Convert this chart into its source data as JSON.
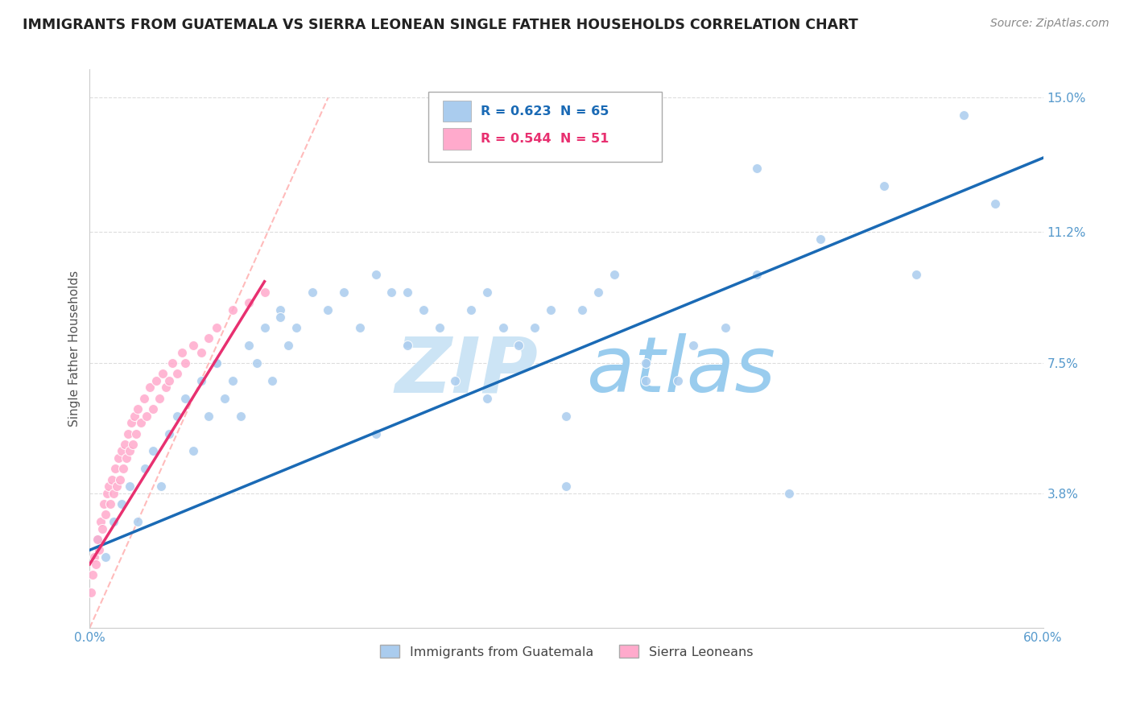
{
  "title": "IMMIGRANTS FROM GUATEMALA VS SIERRA LEONEAN SINGLE FATHER HOUSEHOLDS CORRELATION CHART",
  "source": "Source: ZipAtlas.com",
  "ylabel": "Single Father Households",
  "legend_labels": [
    "Immigrants from Guatemala",
    "Sierra Leoneans"
  ],
  "r_blue": 0.623,
  "n_blue": 65,
  "r_pink": 0.544,
  "n_pink": 51,
  "xlim": [
    0.0,
    0.6
  ],
  "ylim": [
    0.0,
    0.158
  ],
  "yticks": [
    0.038,
    0.075,
    0.112,
    0.15
  ],
  "ytick_labels": [
    "3.8%",
    "7.5%",
    "11.2%",
    "15.0%"
  ],
  "xticks": [
    0.0,
    0.1,
    0.2,
    0.3,
    0.4,
    0.5,
    0.6
  ],
  "xtick_labels": [
    "0.0%",
    "",
    "",
    "",
    "",
    "",
    "60.0%"
  ],
  "blue_color": "#aaccee",
  "pink_color": "#ffaacc",
  "blue_line_color": "#1a6ab5",
  "pink_line_color": "#e83070",
  "diag_color": "#ffbbbb",
  "grid_color": "#dddddd",
  "title_color": "#222222",
  "tick_color": "#5599cc",
  "watermark_zip_color": "#cce4f5",
  "watermark_atlas_color": "#99ccee",
  "background_color": "#ffffff",
  "blue_scatter_x": [
    0.005,
    0.01,
    0.015,
    0.02,
    0.025,
    0.03,
    0.035,
    0.04,
    0.045,
    0.05,
    0.055,
    0.06,
    0.065,
    0.07,
    0.075,
    0.08,
    0.085,
    0.09,
    0.095,
    0.1,
    0.105,
    0.11,
    0.115,
    0.12,
    0.125,
    0.13,
    0.14,
    0.15,
    0.16,
    0.17,
    0.18,
    0.19,
    0.2,
    0.21,
    0.22,
    0.23,
    0.24,
    0.25,
    0.26,
    0.27,
    0.28,
    0.29,
    0.3,
    0.31,
    0.32,
    0.33,
    0.35,
    0.37,
    0.38,
    0.4,
    0.42,
    0.44,
    0.46,
    0.5,
    0.52,
    0.55,
    0.57,
    0.3,
    0.18,
    0.25,
    0.08,
    0.12,
    0.35,
    0.2,
    0.42
  ],
  "blue_scatter_y": [
    0.025,
    0.02,
    0.03,
    0.035,
    0.04,
    0.03,
    0.045,
    0.05,
    0.04,
    0.055,
    0.06,
    0.065,
    0.05,
    0.07,
    0.06,
    0.075,
    0.065,
    0.07,
    0.06,
    0.08,
    0.075,
    0.085,
    0.07,
    0.09,
    0.08,
    0.085,
    0.095,
    0.09,
    0.095,
    0.085,
    0.1,
    0.095,
    0.08,
    0.09,
    0.085,
    0.07,
    0.09,
    0.095,
    0.085,
    0.08,
    0.085,
    0.09,
    0.06,
    0.09,
    0.095,
    0.1,
    0.075,
    0.07,
    0.08,
    0.085,
    0.13,
    0.038,
    0.11,
    0.125,
    0.1,
    0.145,
    0.12,
    0.04,
    0.055,
    0.065,
    0.075,
    0.088,
    0.07,
    0.095,
    0.1
  ],
  "pink_scatter_x": [
    0.001,
    0.002,
    0.003,
    0.004,
    0.005,
    0.006,
    0.007,
    0.008,
    0.009,
    0.01,
    0.011,
    0.012,
    0.013,
    0.014,
    0.015,
    0.016,
    0.017,
    0.018,
    0.019,
    0.02,
    0.021,
    0.022,
    0.023,
    0.024,
    0.025,
    0.026,
    0.027,
    0.028,
    0.029,
    0.03,
    0.032,
    0.034,
    0.036,
    0.038,
    0.04,
    0.042,
    0.044,
    0.046,
    0.048,
    0.05,
    0.052,
    0.055,
    0.058,
    0.06,
    0.065,
    0.07,
    0.075,
    0.08,
    0.09,
    0.1,
    0.11
  ],
  "pink_scatter_y": [
    0.01,
    0.015,
    0.02,
    0.018,
    0.025,
    0.022,
    0.03,
    0.028,
    0.035,
    0.032,
    0.038,
    0.04,
    0.035,
    0.042,
    0.038,
    0.045,
    0.04,
    0.048,
    0.042,
    0.05,
    0.045,
    0.052,
    0.048,
    0.055,
    0.05,
    0.058,
    0.052,
    0.06,
    0.055,
    0.062,
    0.058,
    0.065,
    0.06,
    0.068,
    0.062,
    0.07,
    0.065,
    0.072,
    0.068,
    0.07,
    0.075,
    0.072,
    0.078,
    0.075,
    0.08,
    0.078,
    0.082,
    0.085,
    0.09,
    0.092,
    0.095
  ],
  "blue_trend_x0": 0.0,
  "blue_trend_x1": 0.6,
  "blue_trend_y0": 0.022,
  "blue_trend_y1": 0.133,
  "pink_trend_x0": 0.0,
  "pink_trend_x1": 0.11,
  "pink_trend_y0": 0.018,
  "pink_trend_y1": 0.098
}
